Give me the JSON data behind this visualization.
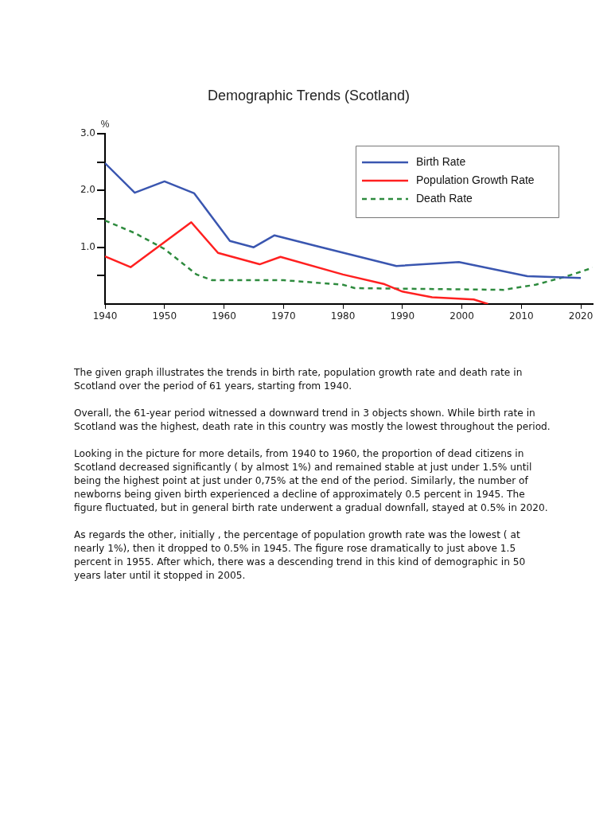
{
  "chart_data": {
    "type": "line",
    "title": "Demographic Trends (Scotland)",
    "ylabel": "%",
    "xlim": [
      1940,
      2022
    ],
    "xticks": [
      1940,
      1950,
      1960,
      1970,
      1980,
      1990,
      2000,
      2010,
      2020
    ],
    "ylim": [
      0,
      3
    ],
    "yticks": [
      {
        "value": 0.5,
        "label": null
      },
      {
        "value": 1,
        "label": "1.0"
      },
      {
        "value": 1.5,
        "label": null
      },
      {
        "value": 2,
        "label": "2.0"
      },
      {
        "value": 2.5,
        "label": null
      },
      {
        "value": 3,
        "label": "3.0"
      }
    ],
    "grid": false,
    "legend": "top right",
    "marker": "none",
    "series": [
      {
        "name": "Birth Rate",
        "color": "#3a56b0",
        "line_style": "solid",
        "x": [
          1940,
          1945,
          1950,
          1955,
          1961,
          1965,
          1968.5,
          1976,
          1989,
          1999.5,
          2011,
          2020
        ],
        "values": [
          2.48,
          1.96,
          2.16,
          1.95,
          1.11,
          1.0,
          1.21,
          1.01,
          0.67,
          0.74,
          0.49,
          0.46
        ]
      },
      {
        "name": "Population Growth Rate",
        "color": "#ff2020",
        "line_style": "solid",
        "x": [
          1940,
          1944.3,
          1954.5,
          1959,
          1966,
          1969.5,
          1980,
          1987,
          1990,
          1995,
          2002,
          2004.4
        ],
        "values": [
          0.84,
          0.65,
          1.44,
          0.9,
          0.7,
          0.83,
          0.52,
          0.35,
          0.22,
          0.12,
          0.08,
          0
        ]
      },
      {
        "name": "Death Rate",
        "color": "#2e8b3e",
        "line_style": "dashed",
        "x": [
          1940,
          1945,
          1950,
          1955.4,
          1958,
          1970,
          1980,
          1982,
          2007,
          2012.4,
          2017.7,
          2022
        ],
        "values": [
          1.47,
          1.25,
          0.97,
          0.52,
          0.42,
          0.42,
          0.34,
          0.28,
          0.25,
          0.34,
          0.49,
          0.64
        ]
      }
    ],
    "annotations": [
      "The given graph illustrates the trends in birth rate, population growth rate and death rate in Scotland over the period of 61 years, starting from 1940.",
      "Overall, the 61-year period witnessed a downward trend in 3 objects shown. While birth rate in Scotland was the highest, death rate in this country was mostly the lowest throughout the period.",
      "Looking in the picture for more details, from 1940 to 1960, the proportion of dead citizens in Scotland decreased significantly ( by almost 1%) and remained stable at just under 1.5% until being the highest point at just under 0,75% at the end of the period. Similarly, the number of newborns being given birth experienced a decline of approximately 0.5 percent in 1945. The figure fluctuated, but in general birth rate underwent a gradual downfall, stayed at 0.5% in 2020.",
      "As regards the other, initially , the percentage of population growth rate was the lowest ( at nearly 1%), then it dropped to 0.5% in 1945. The figure rose dramatically to just above 1.5 percent in 1955. After which, there was a descending trend in this kind of demographic in 50 years later until it stopped in 2005."
    ]
  }
}
